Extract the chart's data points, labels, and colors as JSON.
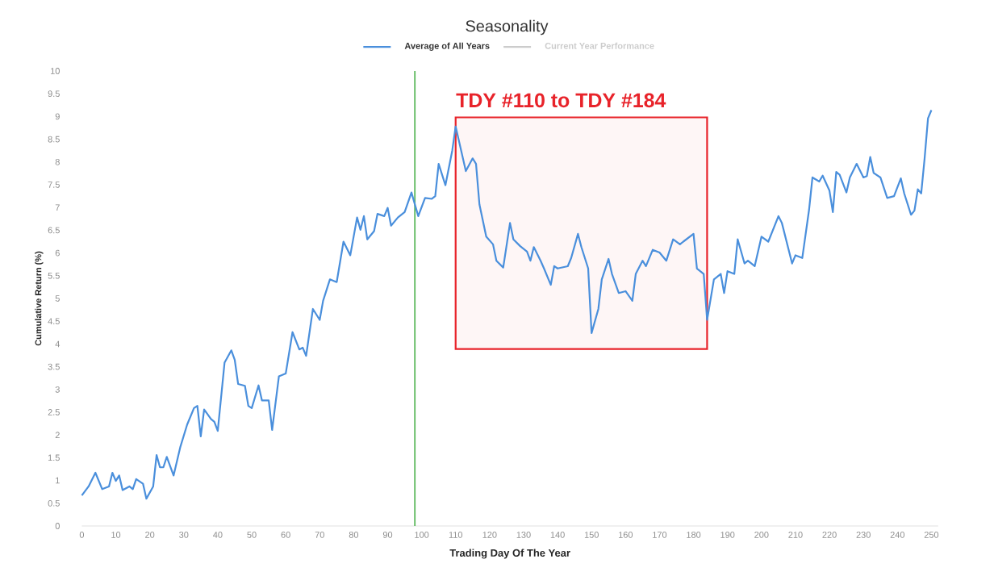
{
  "chart_data": {
    "type": "line",
    "title": "Seasonality",
    "xlabel": "Trading Day Of The Year",
    "ylabel": "Cumulative Return (%)",
    "series": [
      {
        "name": "Average of All Years",
        "color": "#4a8fdc",
        "x": [
          0,
          2,
          4,
          6,
          8,
          9,
          10,
          11,
          12,
          14,
          15,
          16,
          18,
          19,
          21,
          22,
          23,
          24,
          25,
          27,
          29,
          31,
          33,
          34,
          35,
          36,
          38,
          39,
          40,
          42,
          44,
          45,
          46,
          48,
          49,
          50,
          52,
          53,
          55,
          56,
          58,
          60,
          62,
          64,
          65,
          66,
          68,
          70,
          71,
          73,
          75,
          77,
          79,
          81,
          82,
          83,
          84,
          86,
          87,
          89,
          90,
          91,
          93,
          95,
          97,
          99,
          101,
          103,
          104,
          105,
          107,
          109,
          110,
          113,
          115,
          116,
          117,
          119,
          121,
          122,
          124,
          126,
          127,
          129,
          131,
          132,
          133,
          135,
          136,
          138,
          139,
          140,
          143,
          144,
          146,
          147,
          149,
          150,
          152,
          153,
          155,
          156,
          158,
          160,
          162,
          163,
          165,
          166,
          168,
          170,
          172,
          174,
          176,
          177,
          180,
          181,
          183,
          184,
          186,
          188,
          189,
          190,
          192,
          193,
          195,
          196,
          198,
          200,
          202,
          205,
          206,
          209,
          210,
          212,
          214,
          215,
          217,
          218,
          220,
          221,
          222,
          223,
          225,
          226,
          228,
          230,
          231,
          232,
          233,
          235,
          237,
          239,
          241,
          242,
          244,
          245,
          246,
          247,
          248,
          249,
          250
        ],
        "values": [
          0.67,
          0.87,
          1.17,
          0.81,
          0.87,
          1.17,
          0.99,
          1.11,
          0.79,
          0.87,
          0.81,
          1.03,
          0.93,
          0.6,
          0.87,
          1.56,
          1.29,
          1.29,
          1.52,
          1.11,
          1.74,
          2.23,
          2.59,
          2.64,
          1.97,
          2.56,
          2.35,
          2.29,
          2.09,
          3.59,
          3.86,
          3.65,
          3.12,
          3.08,
          2.64,
          2.59,
          3.09,
          2.76,
          2.76,
          2.11,
          3.29,
          3.35,
          4.26,
          3.88,
          3.92,
          3.74,
          4.77,
          4.53,
          4.95,
          5.42,
          5.36,
          6.25,
          5.95,
          6.78,
          6.51,
          6.81,
          6.3,
          6.48,
          6.86,
          6.81,
          6.99,
          6.6,
          6.78,
          6.9,
          7.33,
          6.81,
          7.21,
          7.19,
          7.25,
          7.96,
          7.49,
          8.25,
          8.78,
          7.8,
          8.08,
          7.96,
          7.07,
          6.36,
          6.19,
          5.83,
          5.68,
          6.66,
          6.3,
          6.15,
          6.03,
          5.83,
          6.13,
          5.83,
          5.66,
          5.3,
          5.71,
          5.66,
          5.71,
          5.89,
          6.42,
          6.13,
          5.66,
          4.24,
          4.77,
          5.42,
          5.87,
          5.54,
          5.12,
          5.16,
          4.95,
          5.54,
          5.83,
          5.71,
          6.07,
          6.01,
          5.83,
          6.3,
          6.19,
          6.25,
          6.42,
          5.66,
          5.54,
          4.53,
          5.42,
          5.54,
          5.12,
          5.6,
          5.54,
          6.3,
          5.77,
          5.83,
          5.71,
          6.36,
          6.25,
          6.81,
          6.66,
          5.77,
          5.95,
          5.89,
          6.95,
          7.66,
          7.57,
          7.7,
          7.37,
          6.9,
          7.78,
          7.72,
          7.33,
          7.66,
          7.96,
          7.66,
          7.69,
          8.11,
          7.76,
          7.66,
          7.21,
          7.25,
          7.64,
          7.31,
          6.84,
          6.93,
          7.4,
          7.31,
          8.08,
          8.96,
          9.14
        ]
      },
      {
        "name": "Current Year Performance",
        "color": "#cccccc"
      }
    ],
    "xlim": [
      0,
      252
    ],
    "xticks": [
      0,
      10,
      20,
      30,
      40,
      50,
      60,
      70,
      80,
      90,
      100,
      110,
      120,
      130,
      140,
      150,
      160,
      170,
      180,
      190,
      200,
      210,
      220,
      230,
      240,
      250
    ],
    "ylim": [
      0,
      10
    ],
    "yticks": [
      0,
      0.5,
      1,
      1.5,
      2,
      2.5,
      3,
      3.5,
      4,
      4.5,
      5,
      5.5,
      6,
      6.5,
      7,
      7.5,
      8,
      8.5,
      9,
      9.5,
      10
    ],
    "ref_lines": [
      {
        "axis": "x",
        "value": 98,
        "color": "#5cb85c"
      }
    ],
    "bands": [
      {
        "axis": "x",
        "from": 110,
        "to": 184,
        "label": "TDY #110 to TDY #184",
        "color": "#e8232a"
      }
    ],
    "legend": "top",
    "grid": false,
    "line_style": "solid"
  }
}
